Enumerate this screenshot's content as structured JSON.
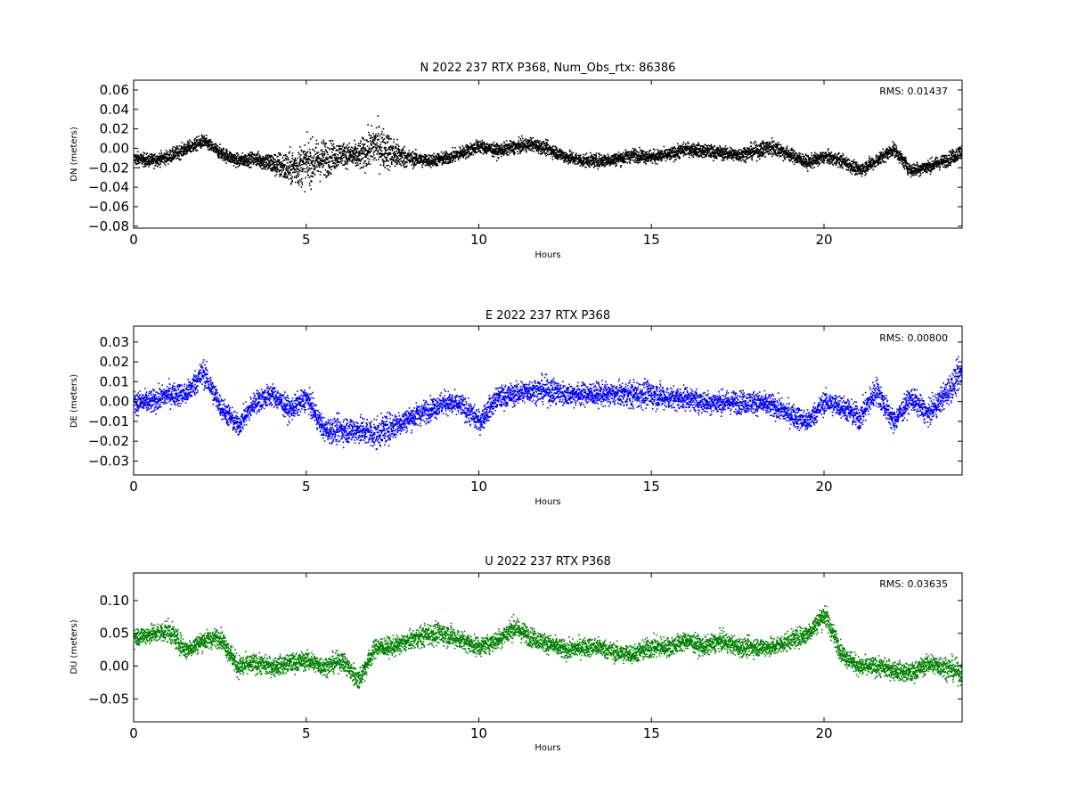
{
  "chart_data": [
    {
      "type": "scatter",
      "title": "N 2022 237 RTX  P368, Num_Obs_rtx: 86386",
      "xlabel": "Hours",
      "ylabel": "DN (meters)",
      "xlim": [
        0,
        24
      ],
      "ylim": [
        -0.082,
        0.07
      ],
      "xticks": [
        0,
        5,
        10,
        15,
        20
      ],
      "xtick_labels": [
        "0",
        "5",
        "10",
        "15",
        "20"
      ],
      "yticks": [
        -0.08,
        -0.06,
        -0.04,
        -0.02,
        0.0,
        0.02,
        0.04,
        0.06
      ],
      "ytick_labels": [
        "−0.08",
        "−0.06",
        "−0.04",
        "−0.02",
        "0.00",
        "0.02",
        "0.04",
        "0.06"
      ],
      "grid": false,
      "color": "#000000",
      "annotation": "RMS:  0.01437",
      "annotation_color": "#0000ff",
      "series": [
        {
          "x": [
            0,
            0.5,
            1,
            1.5,
            2,
            2.5,
            3,
            3.5,
            4,
            4.5,
            5,
            5.5,
            6,
            6.5,
            7,
            7.5,
            8,
            8.5,
            9,
            9.5,
            10,
            10.5,
            11,
            11.5,
            12,
            12.5,
            13,
            13.5,
            14,
            14.5,
            15,
            15.5,
            16,
            16.5,
            17,
            17.5,
            18,
            18.5,
            19,
            19.5,
            20,
            20.5,
            21,
            21.5,
            22,
            22.5,
            23,
            23.5,
            24
          ],
          "y": [
            -0.01,
            -0.012,
            -0.008,
            0.0,
            0.008,
            -0.004,
            -0.012,
            -0.01,
            -0.015,
            -0.02,
            -0.015,
            -0.01,
            -0.005,
            -0.008,
            0.005,
            -0.005,
            -0.01,
            -0.012,
            -0.01,
            -0.004,
            0.003,
            -0.002,
            0.002,
            0.005,
            0.0,
            -0.008,
            -0.012,
            -0.012,
            -0.01,
            -0.006,
            -0.008,
            -0.006,
            0.0,
            -0.002,
            -0.004,
            -0.006,
            -0.002,
            0.002,
            -0.006,
            -0.014,
            -0.008,
            -0.012,
            -0.022,
            -0.012,
            0.0,
            -0.022,
            -0.018,
            -0.012,
            -0.002
          ],
          "spread": [
            0.012,
            0.012,
            0.012,
            0.012,
            0.012,
            0.012,
            0.012,
            0.012,
            0.02,
            0.03,
            0.04,
            0.035,
            0.02,
            0.025,
            0.04,
            0.03,
            0.014,
            0.012,
            0.012,
            0.012,
            0.012,
            0.012,
            0.012,
            0.012,
            0.012,
            0.012,
            0.012,
            0.012,
            0.012,
            0.012,
            0.012,
            0.012,
            0.012,
            0.012,
            0.012,
            0.012,
            0.014,
            0.016,
            0.012,
            0.012,
            0.012,
            0.012,
            0.012,
            0.012,
            0.012,
            0.012,
            0.012,
            0.012,
            0.014
          ]
        }
      ]
    },
    {
      "type": "scatter",
      "title": "E 2022 237 RTX  P368",
      "xlabel": "Hours",
      "ylabel": "DE (meters)",
      "xlim": [
        0,
        24
      ],
      "ylim": [
        -0.037,
        0.038
      ],
      "xticks": [
        0,
        5,
        10,
        15,
        20
      ],
      "xtick_labels": [
        "0",
        "5",
        "10",
        "15",
        "20"
      ],
      "yticks": [
        -0.03,
        -0.02,
        -0.01,
        0.0,
        0.01,
        0.02,
        0.03
      ],
      "ytick_labels": [
        "−0.03",
        "−0.02",
        "−0.01",
        "0.00",
        "0.01",
        "0.02",
        "0.03"
      ],
      "grid": false,
      "color": "#0000ff",
      "annotation": "RMS:  0.00800",
      "annotation_color": "#0000ff",
      "series": [
        {
          "x": [
            0,
            0.5,
            1,
            1.5,
            2,
            2.5,
            3,
            3.5,
            4,
            4.5,
            5,
            5.5,
            6,
            6.5,
            7,
            7.5,
            8,
            8.5,
            9,
            9.5,
            10,
            10.5,
            11,
            11.5,
            12,
            12.5,
            13,
            13.5,
            14,
            14.5,
            15,
            15.5,
            16,
            16.5,
            17,
            17.5,
            18,
            18.5,
            19,
            19.5,
            20,
            20.5,
            21,
            21.5,
            22,
            22.5,
            23,
            23.5,
            24
          ],
          "y": [
            0.0,
            0.0,
            0.004,
            0.004,
            0.015,
            -0.002,
            -0.012,
            0.0,
            0.004,
            -0.004,
            0.002,
            -0.014,
            -0.014,
            -0.014,
            -0.016,
            -0.012,
            -0.008,
            -0.004,
            0.0,
            -0.002,
            -0.01,
            0.002,
            0.004,
            0.006,
            0.006,
            0.004,
            0.004,
            0.004,
            0.004,
            0.004,
            0.004,
            0.002,
            0.002,
            0.0,
            0.0,
            0.0,
            0.0,
            -0.002,
            -0.006,
            -0.01,
            0.0,
            -0.002,
            -0.008,
            0.006,
            -0.01,
            0.002,
            -0.006,
            0.004,
            0.016
          ],
          "spread": [
            0.01,
            0.01,
            0.01,
            0.01,
            0.012,
            0.01,
            0.01,
            0.01,
            0.01,
            0.01,
            0.01,
            0.01,
            0.012,
            0.012,
            0.014,
            0.012,
            0.01,
            0.01,
            0.01,
            0.01,
            0.01,
            0.01,
            0.01,
            0.01,
            0.012,
            0.01,
            0.01,
            0.01,
            0.01,
            0.012,
            0.012,
            0.01,
            0.01,
            0.01,
            0.01,
            0.01,
            0.01,
            0.01,
            0.01,
            0.01,
            0.01,
            0.01,
            0.012,
            0.012,
            0.01,
            0.01,
            0.01,
            0.012,
            0.014
          ]
        }
      ]
    },
    {
      "type": "scatter",
      "title": "U 2022 237 RTX  P368",
      "xlabel": "Hours",
      "ylabel": "DU (meters)",
      "xlim": [
        0,
        24
      ],
      "ylim": [
        -0.085,
        0.142
      ],
      "xticks": [
        0,
        5,
        10,
        15,
        20
      ],
      "xtick_labels": [
        "0",
        "5",
        "10",
        "15",
        "20"
      ],
      "yticks": [
        -0.05,
        0.0,
        0.05,
        0.1
      ],
      "ytick_labels": [
        "−0.05",
        "0.00",
        "0.05",
        "0.10"
      ],
      "grid": false,
      "color": "#008000",
      "annotation": "RMS:  0.03635",
      "annotation_color": "#0000ff",
      "series": [
        {
          "x": [
            0,
            0.5,
            1,
            1.5,
            2,
            2.5,
            3,
            3.5,
            4,
            4.5,
            5,
            5.5,
            6,
            6.5,
            7,
            7.5,
            8,
            8.5,
            9,
            9.5,
            10,
            10.5,
            11,
            11.5,
            12,
            12.5,
            13,
            13.5,
            14,
            14.5,
            15,
            15.5,
            16,
            16.5,
            17,
            17.5,
            18,
            18.5,
            19,
            19.5,
            20,
            20.5,
            21,
            21.5,
            22,
            22.5,
            23,
            23.5,
            24
          ],
          "y": [
            0.045,
            0.05,
            0.055,
            0.025,
            0.04,
            0.045,
            0.0,
            0.005,
            0.0,
            0.005,
            0.01,
            0.0,
            0.01,
            -0.02,
            0.03,
            0.03,
            0.04,
            0.05,
            0.05,
            0.04,
            0.03,
            0.04,
            0.06,
            0.045,
            0.035,
            0.025,
            0.03,
            0.03,
            0.02,
            0.02,
            0.03,
            0.03,
            0.04,
            0.03,
            0.04,
            0.03,
            0.03,
            0.03,
            0.04,
            0.05,
            0.08,
            0.02,
            0.0,
            0.0,
            -0.005,
            -0.01,
            0.005,
            0.0,
            -0.01
          ],
          "spread": [
            0.025,
            0.025,
            0.03,
            0.025,
            0.025,
            0.025,
            0.03,
            0.025,
            0.025,
            0.025,
            0.025,
            0.025,
            0.025,
            0.03,
            0.025,
            0.025,
            0.025,
            0.03,
            0.03,
            0.025,
            0.025,
            0.025,
            0.03,
            0.025,
            0.025,
            0.025,
            0.025,
            0.025,
            0.025,
            0.025,
            0.03,
            0.025,
            0.025,
            0.025,
            0.025,
            0.025,
            0.025,
            0.025,
            0.025,
            0.025,
            0.03,
            0.025,
            0.025,
            0.025,
            0.025,
            0.025,
            0.025,
            0.03,
            0.03
          ]
        }
      ]
    }
  ]
}
